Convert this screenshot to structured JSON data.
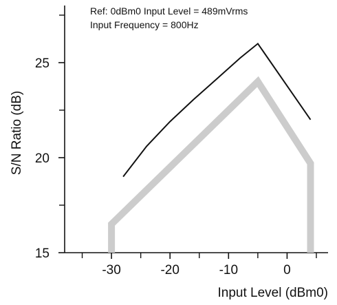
{
  "chart_data": {
    "type": "line",
    "title": "",
    "annotations": [
      "Ref: 0dBm0 Input Level = 489mVrms",
      "Input Frequency = 800Hz"
    ],
    "xlabel": "Input Level (dBm0)",
    "ylabel": "S/N Ratio (dB)",
    "xlim": [
      -38,
      7
    ],
    "ylim": [
      15,
      28
    ],
    "xticks": [
      -30,
      -20,
      -10,
      0
    ],
    "yticks": [
      15,
      20,
      25
    ],
    "grid": false,
    "legend": "none",
    "series": [
      {
        "color": "#111111",
        "x": [
          -28,
          -24,
          -20,
          -16,
          -12,
          -8,
          -5,
          4
        ],
        "y": [
          19.0,
          20.6,
          21.9,
          23.05,
          24.15,
          25.25,
          26.0,
          22.0
        ]
      },
      {
        "color": "#cccccc",
        "x": [
          -30,
          -30,
          -5,
          4,
          4
        ],
        "y": [
          15.0,
          16.5,
          24.0,
          19.7,
          15.0
        ]
      }
    ]
  }
}
